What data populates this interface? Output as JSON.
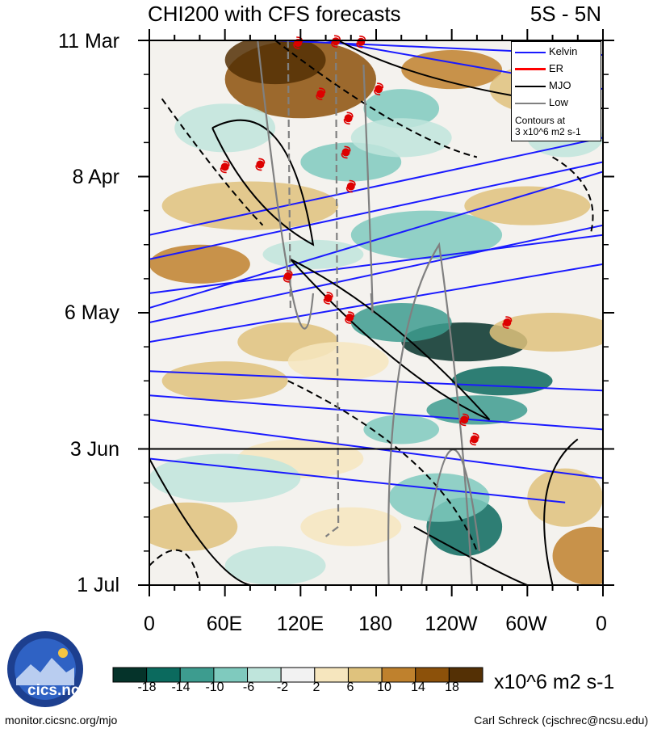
{
  "title": {
    "left": "CHI200 with CFS forecasts",
    "right": "5S - 5N"
  },
  "colors": {
    "kelvin": "#1a1aff",
    "er": "#ff0000",
    "mjo": "#000000",
    "low": "#808080",
    "storm": "#dd0000",
    "cb": [
      "#05332a",
      "#0b6a5e",
      "#3d9c8f",
      "#7fcabe",
      "#bfe5dc",
      "#f2f2f2",
      "#f6e6be",
      "#dfc27d",
      "#bf812d",
      "#8c510a",
      "#543005"
    ]
  },
  "legend": {
    "kelvin": "Kelvin",
    "er": "ER",
    "mjo": "MJO",
    "low": "Low",
    "note1": "Contours at",
    "note2": "3 x10^6 m2 s-1"
  },
  "colorbar": {
    "labels": [
      "-18",
      "-14",
      "-10",
      "-6",
      "-2",
      "2",
      "6",
      "10",
      "14",
      "18"
    ],
    "units": "x10^6 m2 s-1"
  },
  "footer": {
    "left": "monitor.cicsnc.org/mjo",
    "right": "Carl Schreck (cjschrec@ncsu.edu)",
    "logo": "cics.nc"
  },
  "chart_data": {
    "type": "heatmap",
    "title": "CHI200 with CFS forecasts",
    "region": "5S - 5N",
    "x_ticks": [
      "0",
      "60E",
      "120E",
      "180",
      "120W",
      "60W",
      "0"
    ],
    "x_range": [
      0,
      360
    ],
    "y_ticks": [
      "11 Mar",
      "8 Apr",
      "6 May",
      "3 Jun",
      "1 Jul"
    ],
    "y_range_days": [
      0,
      112
    ],
    "forecast_start": "3 Jun",
    "units": "x10^6 m2 s-1",
    "contour_interval": 3,
    "storms": [
      {
        "lon": 118,
        "day": 0.5
      },
      {
        "lon": 148,
        "day": 0.2
      },
      {
        "lon": 168,
        "day": 0.3
      },
      {
        "lon": 136,
        "day": 11
      },
      {
        "lon": 182,
        "day": 10
      },
      {
        "lon": 158,
        "day": 16
      },
      {
        "lon": 156,
        "day": 23
      },
      {
        "lon": 60,
        "day": 26
      },
      {
        "lon": 88,
        "day": 25.5
      },
      {
        "lon": 160,
        "day": 30
      },
      {
        "lon": 110,
        "day": 48.5
      },
      {
        "lon": 142,
        "day": 53
      },
      {
        "lon": 159,
        "day": 57
      },
      {
        "lon": 284,
        "day": 58
      },
      {
        "lon": 250,
        "day": 78
      },
      {
        "lon": 258,
        "day": 82
      }
    ]
  }
}
